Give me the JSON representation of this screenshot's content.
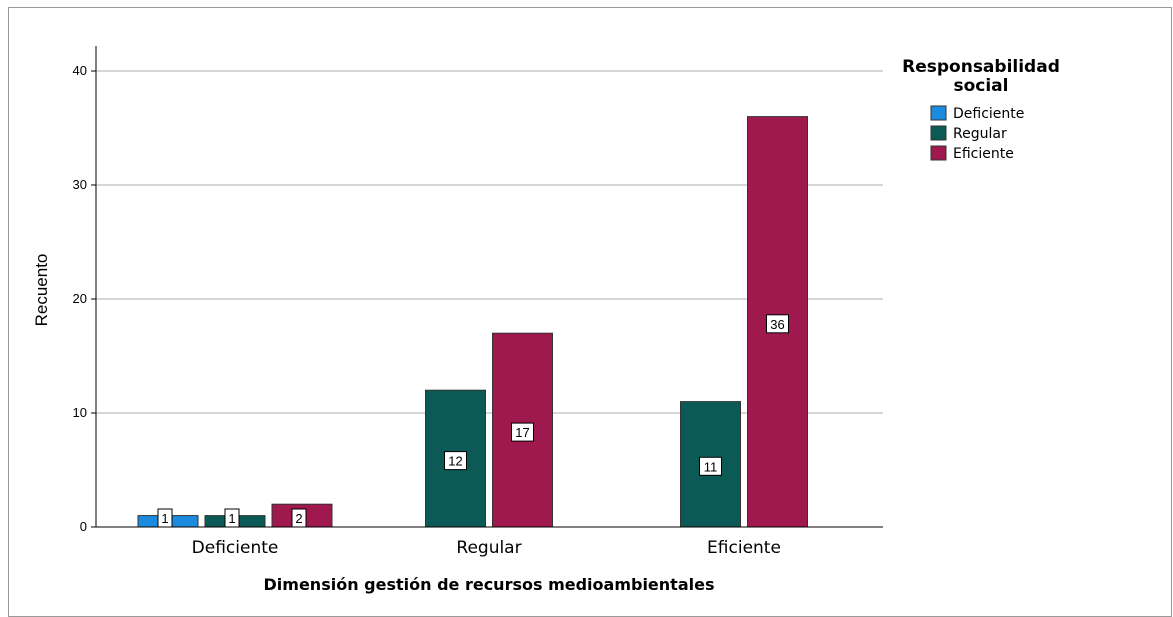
{
  "chart_data": {
    "type": "bar",
    "categories": [
      "Deficiente",
      "Regular",
      "Eficiente"
    ],
    "series": [
      {
        "name": "Deficiente",
        "values": [
          1,
          0,
          0
        ],
        "color": "#1b8be0"
      },
      {
        "name": "Regular",
        "values": [
          1,
          12,
          11
        ],
        "color": "#0c5a56"
      },
      {
        "name": "Eficiente",
        "values": [
          2,
          17,
          36
        ],
        "color": "#a0194e"
      }
    ],
    "data_labels_shown": [
      [
        1,
        null,
        null
      ],
      [
        1,
        12,
        11
      ],
      [
        2,
        17,
        36
      ]
    ],
    "xlabel": "Dimensión gestión de recursos medioambientales",
    "ylabel": "Recuento",
    "ylim": [
      0,
      42
    ],
    "yticks": [
      0,
      10,
      20,
      30,
      40
    ],
    "grid": true,
    "legend": {
      "title_line1": "Responsabilidad",
      "title_line2": "social",
      "position": "top-right"
    }
  }
}
